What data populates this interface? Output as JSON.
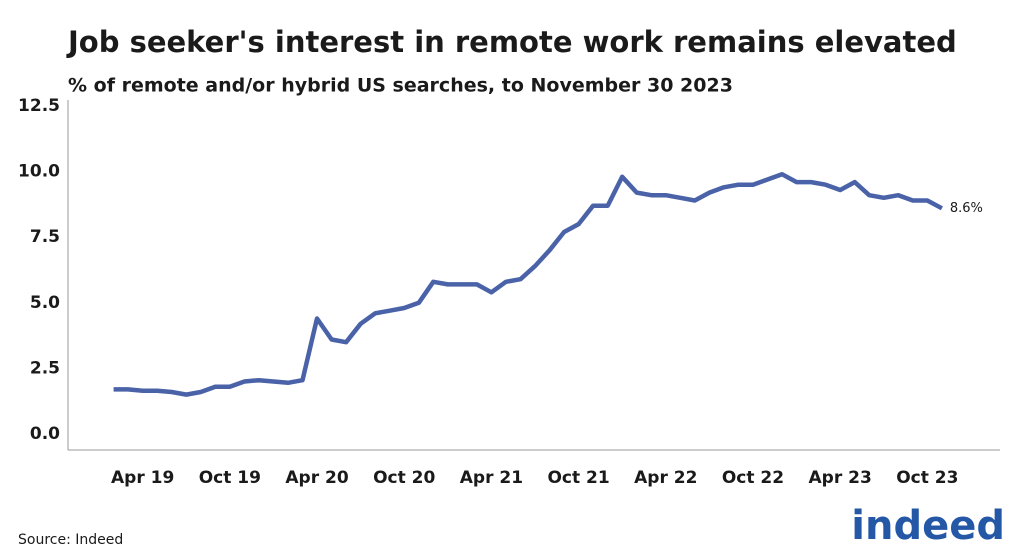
{
  "chart_data": {
    "type": "line",
    "title": "Job seeker's interest in remote work remains elevated",
    "subtitle": "% of remote and/or hybrid US searches, to November 30 2023",
    "source": "Source: Indeed",
    "logo": "indeed",
    "x": [
      "2019-02",
      "2019-03",
      "2019-04",
      "2019-05",
      "2019-06",
      "2019-07",
      "2019-08",
      "2019-09",
      "2019-10",
      "2019-11",
      "2019-12",
      "2020-01",
      "2020-02",
      "2020-03",
      "2020-04",
      "2020-05",
      "2020-06",
      "2020-07",
      "2020-08",
      "2020-09",
      "2020-10",
      "2020-11",
      "2020-12",
      "2021-01",
      "2021-02",
      "2021-03",
      "2021-04",
      "2021-05",
      "2021-06",
      "2021-07",
      "2021-08",
      "2021-09",
      "2021-10",
      "2021-11",
      "2021-12",
      "2022-01",
      "2022-02",
      "2022-03",
      "2022-04",
      "2022-05",
      "2022-06",
      "2022-07",
      "2022-08",
      "2022-09",
      "2022-10",
      "2022-11",
      "2022-12",
      "2023-01",
      "2023-02",
      "2023-03",
      "2023-04",
      "2023-05",
      "2023-06",
      "2023-07",
      "2023-08",
      "2023-09",
      "2023-10",
      "2023-11"
    ],
    "series": [
      {
        "name": "Remote and/or hybrid searches",
        "color": "#4a63a8",
        "values": [
          1.7,
          1.7,
          1.65,
          1.65,
          1.6,
          1.5,
          1.6,
          1.8,
          1.8,
          2.0,
          2.05,
          2.0,
          1.95,
          2.05,
          4.4,
          3.6,
          3.5,
          4.2,
          4.6,
          4.7,
          4.8,
          5.0,
          5.8,
          5.7,
          5.7,
          5.7,
          5.4,
          5.8,
          5.9,
          6.4,
          7.0,
          7.7,
          8.0,
          8.7,
          8.7,
          9.8,
          9.2,
          9.1,
          9.1,
          9.0,
          8.9,
          9.2,
          9.4,
          9.5,
          9.5,
          9.7,
          9.9,
          9.6,
          9.6,
          9.5,
          9.3,
          9.6,
          9.1,
          9.0,
          9.1,
          8.9,
          8.9,
          8.6
        ],
        "value_labels": [
          null,
          null,
          null,
          null,
          null,
          null,
          null,
          null,
          null,
          null,
          null,
          null,
          null,
          null,
          null,
          null,
          null,
          null,
          null,
          null,
          null,
          null,
          null,
          null,
          null,
          null,
          null,
          null,
          null,
          null,
          null,
          null,
          null,
          null,
          null,
          null,
          null,
          null,
          null,
          null,
          null,
          null,
          null,
          null,
          null,
          null,
          null,
          null,
          null,
          null,
          null,
          null,
          null,
          null,
          null,
          null,
          null,
          "8.6%"
        ]
      }
    ],
    "xlim": [
      "2018-11",
      "2024-03"
    ],
    "xticks": [
      {
        "value": "2019-04",
        "label": "Apr 19"
      },
      {
        "value": "2019-10",
        "label": "Oct 19"
      },
      {
        "value": "2020-04",
        "label": "Apr 20"
      },
      {
        "value": "2020-10",
        "label": "Oct 20"
      },
      {
        "value": "2021-04",
        "label": "Apr 21"
      },
      {
        "value": "2021-10",
        "label": "Oct 21"
      },
      {
        "value": "2022-04",
        "label": "Apr 22"
      },
      {
        "value": "2022-10",
        "label": "Oct 22"
      },
      {
        "value": "2023-04",
        "label": "Apr 23"
      },
      {
        "value": "2023-10",
        "label": "Oct 23"
      }
    ],
    "ylim": [
      0,
      12.5
    ],
    "yticks": [
      {
        "value": 0,
        "label": "0.0"
      },
      2.5,
      {
        "value": 5,
        "label": "5.0"
      },
      7.5,
      {
        "value": 10,
        "label": "10.0"
      },
      12.5
    ],
    "grid": false
  }
}
